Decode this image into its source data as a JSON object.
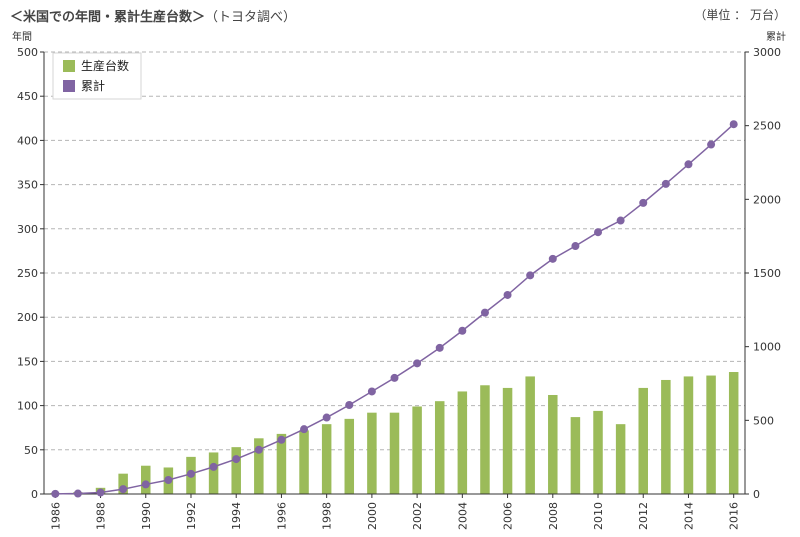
{
  "title": "＜米国での年間・累計生産台数＞",
  "subtitle": "（トヨタ調べ）",
  "unit_label": "（単位 ： 万台）",
  "chart_data": {
    "type": "bar",
    "title": "＜米国での年間・累計生産台数＞",
    "ylabel": "年間",
    "y2label": "累計",
    "ylim": [
      0,
      500
    ],
    "y2lim": [
      0,
      3000
    ],
    "yticks": [
      0,
      50,
      100,
      150,
      200,
      250,
      300,
      350,
      400,
      450,
      500
    ],
    "y2ticks": [
      0,
      500,
      1000,
      1500,
      2000,
      2500,
      3000
    ],
    "x": [
      1986,
      1987,
      1988,
      1989,
      1990,
      1991,
      1992,
      1993,
      1994,
      1995,
      1996,
      1997,
      1998,
      1999,
      2000,
      2001,
      2002,
      2003,
      2004,
      2005,
      2006,
      2007,
      2008,
      2009,
      2010,
      2011,
      2012,
      2013,
      2014,
      2015,
      2016
    ],
    "xticks": [
      "1986",
      "1988",
      "1990",
      "1992",
      "1994",
      "1996",
      "1998",
      "2000",
      "2002",
      "2004",
      "2006",
      "2008",
      "2010",
      "2012",
      "2014",
      "2016"
    ],
    "grid": true,
    "legend_position": "top-left",
    "series": [
      {
        "name": "生産台数",
        "type": "bar",
        "axis": "left",
        "color": "#9bbb59",
        "values": [
          1,
          2,
          7,
          23,
          32,
          30,
          42,
          47,
          53,
          63,
          68,
          72,
          79,
          85,
          92,
          92,
          99,
          105,
          116,
          123,
          120,
          133,
          112,
          87,
          94,
          79,
          120,
          129,
          133,
          134,
          138
        ]
      },
      {
        "name": "累計",
        "type": "line",
        "axis": "right",
        "color": "#8064a2",
        "values": [
          1,
          3,
          10,
          33,
          65,
          95,
          137,
          184,
          237,
          300,
          368,
          440,
          519,
          604,
          696,
          788,
          887,
          992,
          1108,
          1231,
          1351,
          1484,
          1596,
          1683,
          1777,
          1856,
          1976,
          2105,
          2238,
          2372,
          2510
        ]
      }
    ]
  }
}
